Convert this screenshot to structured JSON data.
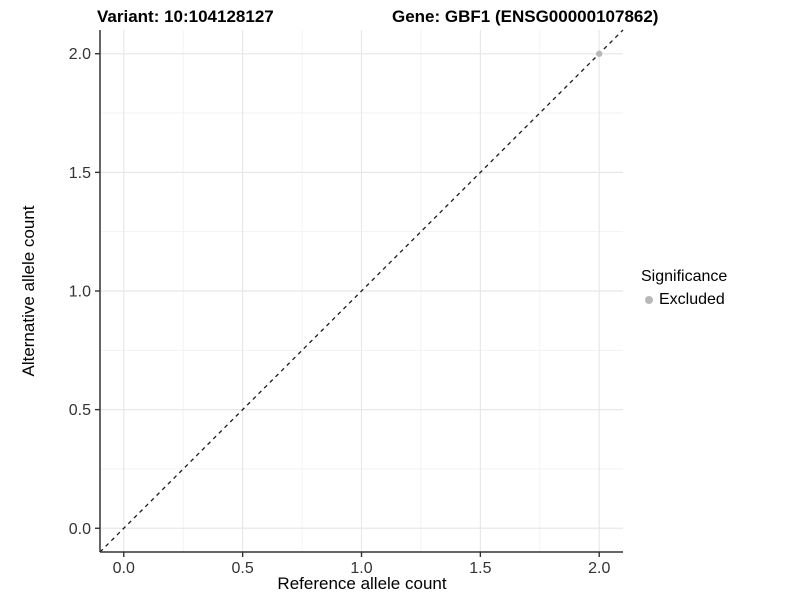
{
  "figure": {
    "title_left": "Variant: 10:104128127",
    "title_right": "Gene: GBF1 (ENSG00000107862)",
    "x_axis_label": "Reference allele count",
    "y_axis_label": "Alternative allele count",
    "legend": {
      "title": "Significance",
      "items": [
        {
          "label": "Excluded",
          "color": "#b8b8b8"
        }
      ]
    }
  },
  "chart_data": {
    "type": "scatter",
    "title": "Variant: 10:104128127   Gene: GBF1 (ENSG00000107862)",
    "xlabel": "Reference allele count",
    "ylabel": "Alternative allele count",
    "xlim": [
      -0.1,
      2.1
    ],
    "ylim": [
      -0.1,
      2.1
    ],
    "grid": true,
    "legend_position": "right",
    "x_ticks": {
      "values": [
        0,
        0.5,
        1,
        1.5,
        2
      ],
      "labels": [
        "0.0",
        "0.5",
        "1.0",
        "1.5",
        "2.0"
      ]
    },
    "y_ticks": {
      "values": [
        0,
        0.5,
        1,
        1.5,
        2
      ],
      "labels": [
        "0.0",
        "0.5",
        "1.0",
        "1.5",
        "2.0"
      ]
    },
    "x_minor_ticks": [
      0.25,
      0.75,
      1.25,
      1.75
    ],
    "y_minor_ticks": [
      0.25,
      0.75,
      1.25,
      1.75
    ],
    "reference_line": {
      "name": "identity-line",
      "style": "dashed",
      "from": [
        -0.1,
        -0.1
      ],
      "to": [
        2.1,
        2.1
      ],
      "color": "#1a1a1a"
    },
    "series": [
      {
        "name": "Excluded",
        "color": "#b8b8b8",
        "points": [
          [
            2.0,
            2.0
          ]
        ]
      }
    ],
    "colors": {
      "major_grid": "#e8e8e8",
      "minor_grid": "#f3f3f3",
      "axis": "#333333",
      "tick_text": "#333333"
    }
  }
}
